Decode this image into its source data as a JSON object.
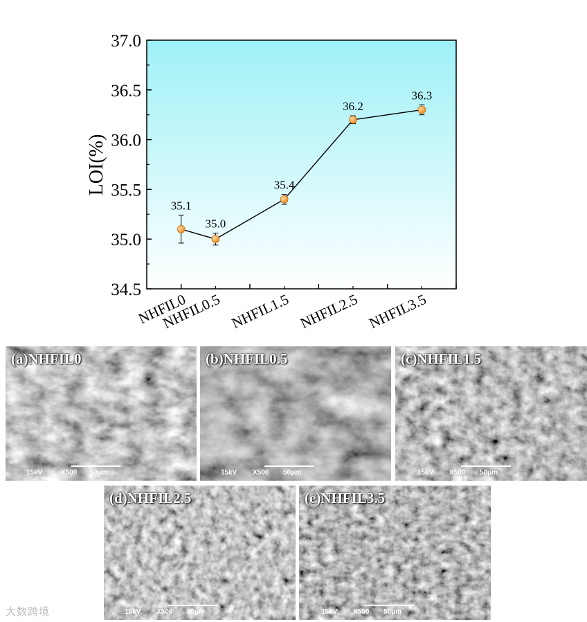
{
  "chart_data": {
    "type": "line",
    "ylabel": "LOI(%)",
    "categories": [
      "NHFIL0",
      "NHFIL0.5",
      "NHFIL1.5",
      "NHFIL2.5",
      "NHFIL3.5"
    ],
    "x": [
      0,
      0.5,
      1.5,
      2.5,
      3.5
    ],
    "values": [
      35.1,
      35.0,
      35.4,
      36.2,
      36.3
    ],
    "errors": [
      0.14,
      0.06,
      0.05,
      0.04,
      0.05
    ],
    "data_labels": [
      "35.1",
      "35.0",
      "35.4",
      "36.2",
      "36.3"
    ],
    "ylim": [
      34.5,
      37.0
    ],
    "yticks": [
      "34.5",
      "35.0",
      "35.5",
      "36.0",
      "36.5",
      "37.0"
    ],
    "marker_color": "#e8891c",
    "line_color": "#000000",
    "background_gradient": [
      "#ffffff",
      "#9ef1f7"
    ],
    "legend": "none",
    "grid": false
  },
  "sem_panels": [
    {
      "label": "(a)NHFIL0",
      "kv": "15kV",
      "mag": "X500",
      "scale": "50μm"
    },
    {
      "label": "(b)NHFIL0.5",
      "kv": "15kV",
      "mag": "X500",
      "scale": "50μm"
    },
    {
      "label": "(c)NHFIL1.5",
      "kv": "15kV",
      "mag": "X500",
      "scale": "50μm"
    },
    {
      "label": "(d)NHFIL2.5",
      "kv": "15kV",
      "mag": "X500",
      "scale": "50μm"
    },
    {
      "label": "(e)NHFIL3.5",
      "kv": "15kV",
      "mag": "X500",
      "scale": "50μm"
    }
  ],
  "watermark": "大数跨境"
}
